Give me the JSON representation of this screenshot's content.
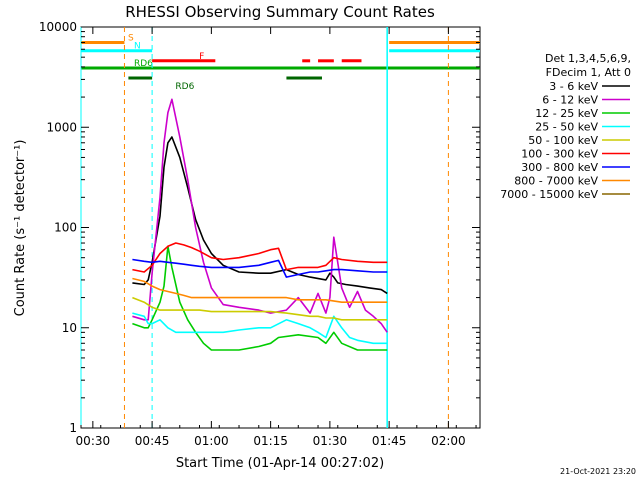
{
  "chart_data": {
    "type": "line",
    "title": "RHESSI Observing Summary Count Rates",
    "xlabel": "Start Time (01-Apr-14 00:27:02)",
    "ylabel": "Count Rate (s⁻¹ detector⁻¹)",
    "x_unit": "minutes after 00:27:02",
    "xlim": [
      0,
      101
    ],
    "ylim": [
      1,
      10000
    ],
    "y_scale": "log",
    "x_ticks": [
      {
        "x": 3,
        "label": "00:30"
      },
      {
        "x": 18,
        "label": "00:45"
      },
      {
        "x": 33,
        "label": "01:00"
      },
      {
        "x": 48,
        "label": "01:15"
      },
      {
        "x": 63,
        "label": "01:30"
      },
      {
        "x": 78,
        "label": "01:45"
      },
      {
        "x": 93,
        "label": "02:00"
      }
    ],
    "y_ticks": [
      {
        "y": 1,
        "label": "1"
      },
      {
        "y": 10,
        "label": "10"
      },
      {
        "y": 100,
        "label": "100"
      },
      {
        "y": 1000,
        "label": "1000"
      },
      {
        "y": 10000,
        "label": "10000"
      }
    ],
    "legend_header": [
      "Det 1,3,4,5,6,9,",
      "FDecim 1, Att 0"
    ],
    "legend_position": "right",
    "series": [
      {
        "name": "3 - 6 keV",
        "color": "#000000",
        "x": [
          13,
          16,
          17,
          18,
          20,
          21,
          22,
          23,
          25,
          27,
          29,
          31,
          33,
          36,
          40,
          45,
          48,
          52,
          55,
          58,
          62,
          63,
          64,
          65,
          67,
          70,
          73,
          76,
          77.5
        ],
        "y": [
          28,
          27,
          30,
          45,
          130,
          400,
          700,
          800,
          500,
          250,
          120,
          75,
          55,
          42,
          36,
          35,
          35,
          38,
          34,
          32,
          30,
          35,
          32,
          28,
          27,
          26,
          25,
          24,
          22
        ]
      },
      {
        "name": "6 - 12 keV",
        "color": "#cc00cc",
        "x": [
          13,
          16,
          17,
          18,
          20,
          21,
          22,
          23,
          25,
          27,
          29,
          31,
          33,
          36,
          40,
          45,
          48,
          52,
          55,
          58,
          60,
          62,
          63,
          64,
          66,
          68,
          70,
          72,
          74,
          76,
          77.5
        ],
        "y": [
          13,
          12,
          12,
          35,
          200,
          700,
          1400,
          1900,
          800,
          300,
          100,
          45,
          25,
          17,
          16,
          15,
          14,
          15,
          20,
          14,
          22,
          14,
          20,
          80,
          25,
          16,
          23,
          15,
          13,
          11,
          9
        ]
      },
      {
        "name": "12 - 25 keV",
        "color": "#00cc00",
        "x": [
          13,
          16,
          17,
          18,
          20,
          21,
          22,
          23,
          25,
          27,
          29,
          31,
          33,
          36,
          40,
          45,
          48,
          50,
          55,
          60,
          62,
          64,
          66,
          70,
          74,
          77.5
        ],
        "y": [
          11,
          10,
          10,
          12,
          18,
          26,
          65,
          40,
          18,
          12,
          9,
          7,
          6,
          6,
          6,
          6.5,
          7,
          8,
          8.5,
          8,
          7,
          9,
          7,
          6,
          6,
          6
        ]
      },
      {
        "name": "25 - 50 keV",
        "color": "#00ffff",
        "x": [
          13,
          16,
          17,
          18,
          20,
          22,
          24,
          26,
          28,
          30,
          33,
          36,
          40,
          45,
          48,
          52,
          55,
          58,
          60,
          62,
          64,
          66,
          68,
          70,
          74,
          77.5
        ],
        "y": [
          14,
          13,
          11,
          11,
          12,
          10,
          9,
          9,
          9,
          9,
          9,
          9,
          9.5,
          10,
          10,
          12,
          11,
          10,
          9,
          8,
          13,
          10,
          8,
          7.5,
          7,
          7
        ]
      },
      {
        "name": "50 - 100 keV",
        "color": "#cccc00",
        "x": [
          13,
          16,
          18,
          20,
          22,
          24,
          26,
          28,
          30,
          33,
          36,
          40,
          45,
          48,
          52,
          55,
          58,
          60,
          62,
          64,
          66,
          70,
          74,
          77.5
        ],
        "y": [
          20,
          18,
          16,
          15,
          15,
          15,
          15,
          15,
          15,
          14.5,
          14.5,
          14.5,
          14.5,
          14.5,
          14,
          13.5,
          13,
          13,
          12.5,
          12.5,
          12,
          12,
          12,
          12
        ]
      },
      {
        "name": "100 - 300 keV",
        "color": "#ff0000",
        "x": [
          13,
          16,
          18,
          20,
          22,
          24,
          26,
          28,
          30,
          33,
          36,
          40,
          45,
          48,
          50,
          52,
          55,
          58,
          60,
          62,
          64,
          66,
          70,
          74,
          77.5
        ],
        "y": [
          38,
          36,
          42,
          55,
          65,
          70,
          67,
          63,
          58,
          50,
          48,
          50,
          55,
          60,
          62,
          38,
          40,
          40,
          40,
          42,
          50,
          48,
          46,
          45,
          45
        ]
      },
      {
        "name": "300 - 800 keV",
        "color": "#0000ff",
        "x": [
          13,
          16,
          18,
          20,
          22,
          24,
          26,
          28,
          30,
          33,
          36,
          40,
          45,
          48,
          50,
          52,
          55,
          58,
          60,
          62,
          64,
          66,
          70,
          74,
          77.5
        ],
        "y": [
          48,
          46,
          45,
          46,
          45,
          44,
          43,
          42,
          41,
          40,
          40,
          40,
          42,
          45,
          47,
          32,
          34,
          36,
          36,
          37,
          38,
          38,
          37,
          36,
          36
        ]
      },
      {
        "name": "800 - 7000 keV",
        "color": "#ff8800",
        "x": [
          13,
          16,
          18,
          20,
          22,
          24,
          26,
          28,
          30,
          33,
          36,
          40,
          45,
          48,
          52,
          55,
          58,
          62,
          66,
          70,
          74,
          77.5
        ],
        "y": [
          31,
          29,
          26,
          24,
          23,
          22,
          21,
          20,
          20,
          20,
          20,
          20,
          20,
          20,
          20,
          19,
          19,
          19,
          18,
          18,
          18,
          18
        ]
      },
      {
        "name": "7000 - 15000 keV",
        "color": "#886600",
        "x": [],
        "y": []
      }
    ],
    "status_bars": [
      {
        "label": "S",
        "color": "#ff8800",
        "level": 7000,
        "segments": [
          [
            0,
            11
          ],
          [
            78,
            101
          ]
        ]
      },
      {
        "label": "N",
        "color": "#00ffff",
        "level": 5800,
        "segments": [
          [
            0,
            18
          ],
          [
            78,
            101
          ]
        ]
      },
      {
        "label": "F",
        "color": "#ff0000",
        "level": 4600,
        "segments": [
          [
            18,
            34
          ],
          [
            56,
            58
          ],
          [
            60,
            64
          ],
          [
            66,
            71
          ]
        ]
      },
      {
        "label": "RD6",
        "color": "#00aa00",
        "level": 3900,
        "segments": [
          [
            0,
            101
          ]
        ]
      },
      {
        "label": "RD6",
        "color": "#006600",
        "level": 3100,
        "segments": [
          [
            12,
            18
          ],
          [
            52,
            61
          ]
        ]
      }
    ],
    "grid": false
  },
  "footer": {
    "timestamp": "21-Oct-2021 23:20"
  }
}
